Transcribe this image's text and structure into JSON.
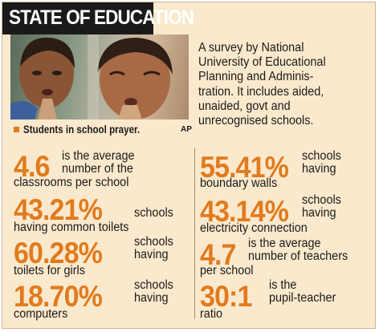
{
  "title": "STATE OF EDUCATION",
  "photo": {
    "caption": "Students in school prayer.",
    "credit": "AP"
  },
  "intro": [
    "A survey by National",
    "University of Educational",
    "Planning and Adminis-",
    "tration. It includes aided,",
    "unaided, govt and",
    "unrecognised schools."
  ],
  "left_stats": [
    {
      "value": "4.6",
      "text_lines": [
        "is the average",
        "number of the",
        "classrooms per school"
      ]
    },
    {
      "value": "43.21%",
      "text_lines": [
        "schools",
        "having common toilets"
      ]
    },
    {
      "value": "60.28%",
      "text_lines": [
        "schools",
        "having",
        "toilets for girls"
      ]
    },
    {
      "value": "18.70%",
      "text_lines": [
        "schools",
        "having",
        "computers"
      ]
    }
  ],
  "right_stats": [
    {
      "value": "55.41%",
      "text_lines": [
        "schools",
        "having",
        "boundary walls"
      ]
    },
    {
      "value": "43.14%",
      "text_lines": [
        "schools",
        "having",
        "electricity connection"
      ]
    },
    {
      "value": "4.7",
      "text_lines": [
        "is the average",
        "number of teachers",
        "per school"
      ]
    },
    {
      "value": "30:1",
      "text_lines": [
        "is the",
        "pupil-teacher",
        "ratio"
      ]
    }
  ],
  "colors": {
    "accent": "#e07b1e",
    "background": "#fbe9cd",
    "title_bar": "#1c1a18",
    "text": "#1c1a18"
  }
}
